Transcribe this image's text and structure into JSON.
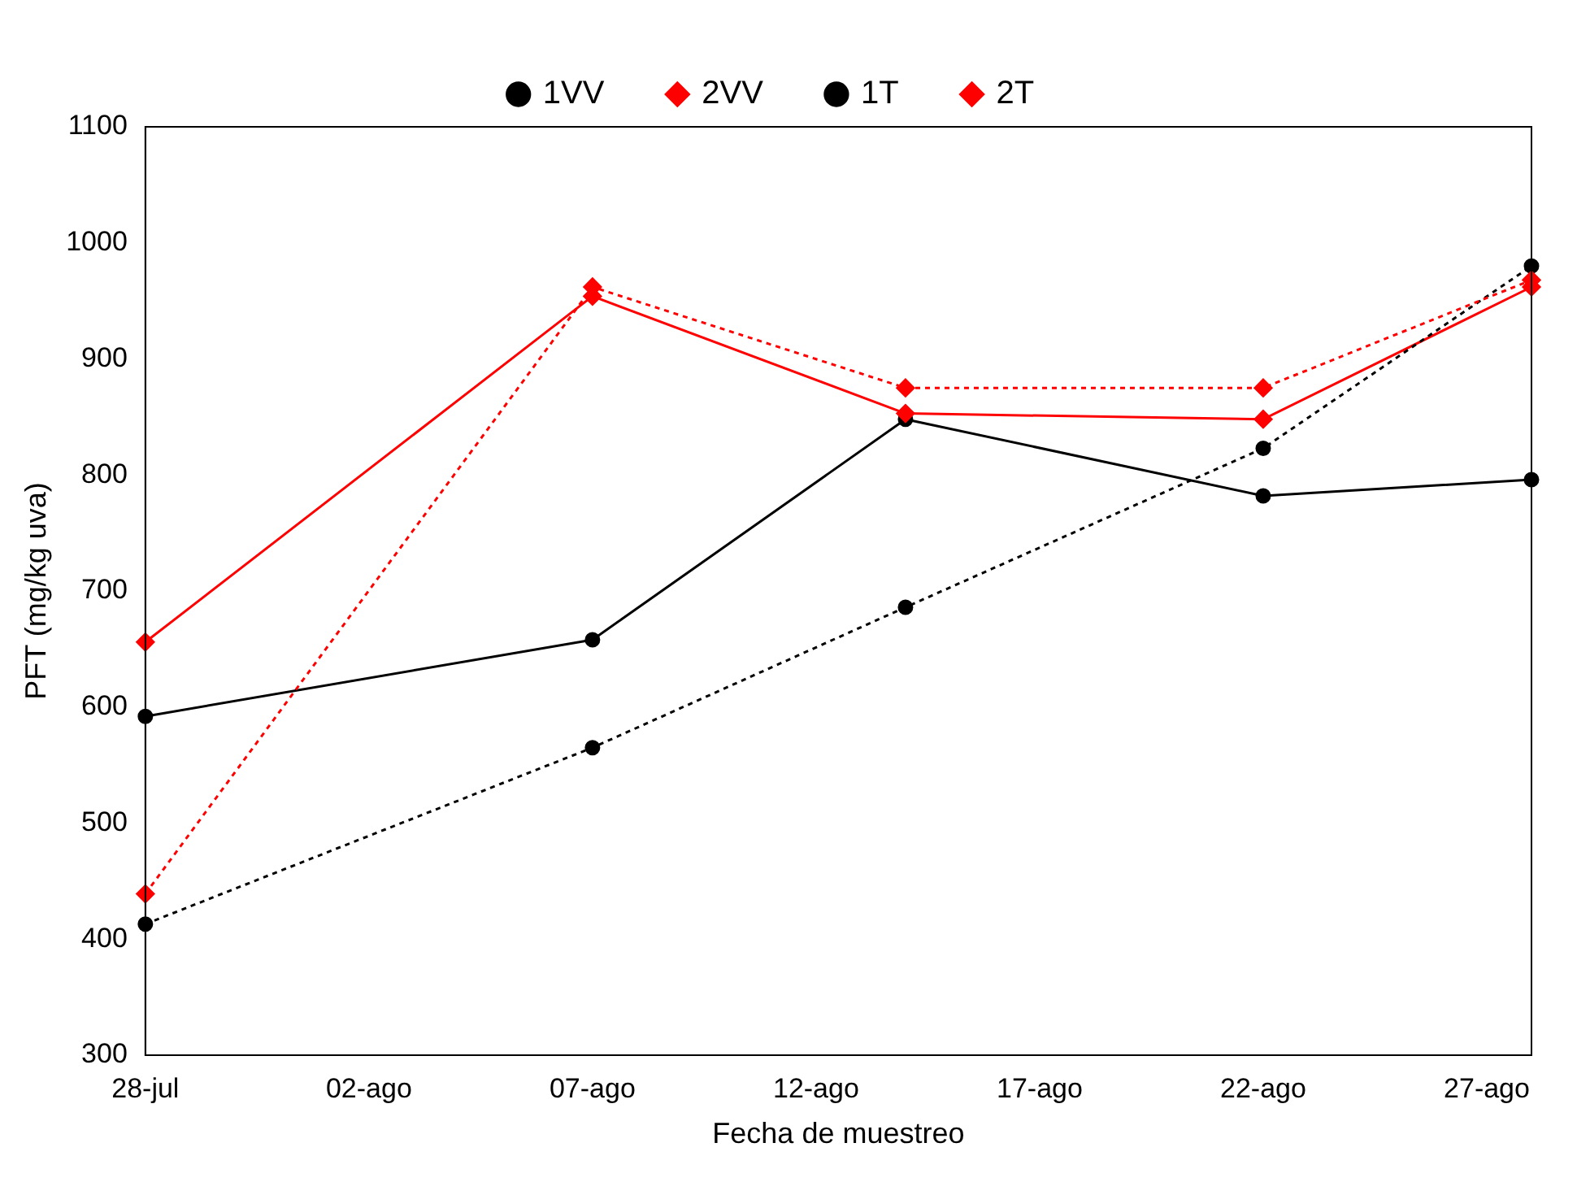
{
  "chart_data": {
    "type": "line",
    "xlabel": "Fecha de muestreo",
    "ylabel": "PFT (mg/kg uva)",
    "x": [
      "--07-28",
      "--08-07",
      "--08-14",
      "--08-22",
      "--08-28"
    ],
    "series": [
      {
        "name": "1VV",
        "color": "#000000",
        "marker": "circle",
        "line_style": "solid",
        "values": [
          592,
          658,
          848,
          782,
          796
        ]
      },
      {
        "name": "2VV",
        "color": "#ff0000",
        "marker": "diamond",
        "line_style": "solid",
        "values": [
          656,
          954,
          853,
          848,
          962
        ]
      },
      {
        "name": "1T",
        "color": "#000000",
        "marker": "circle",
        "line_style": "dotted",
        "values": [
          413,
          565,
          686,
          823,
          980
        ]
      },
      {
        "name": "2T",
        "color": "#ff0000",
        "marker": "diamond",
        "line_style": "dotted",
        "values": [
          439,
          962,
          875,
          875,
          968
        ]
      }
    ],
    "xlim": [
      "--07-28",
      "--08-28"
    ],
    "xticks": [
      {
        "value": "--07-28",
        "label": "28-jul"
      },
      {
        "value": "--08-02",
        "label": "02-ago"
      },
      {
        "value": "--08-07",
        "label": "07-ago"
      },
      {
        "value": "--08-12",
        "label": "12-ago"
      },
      {
        "value": "--08-17",
        "label": "17-ago"
      },
      {
        "value": "--08-22",
        "label": "22-ago"
      },
      {
        "value": "--08-27",
        "label": "27-ago"
      }
    ],
    "ylim": [
      300,
      1100
    ],
    "yticks": [
      300,
      400,
      500,
      600,
      700,
      800,
      900,
      1000,
      1100
    ],
    "grid": false,
    "legend": "top"
  }
}
